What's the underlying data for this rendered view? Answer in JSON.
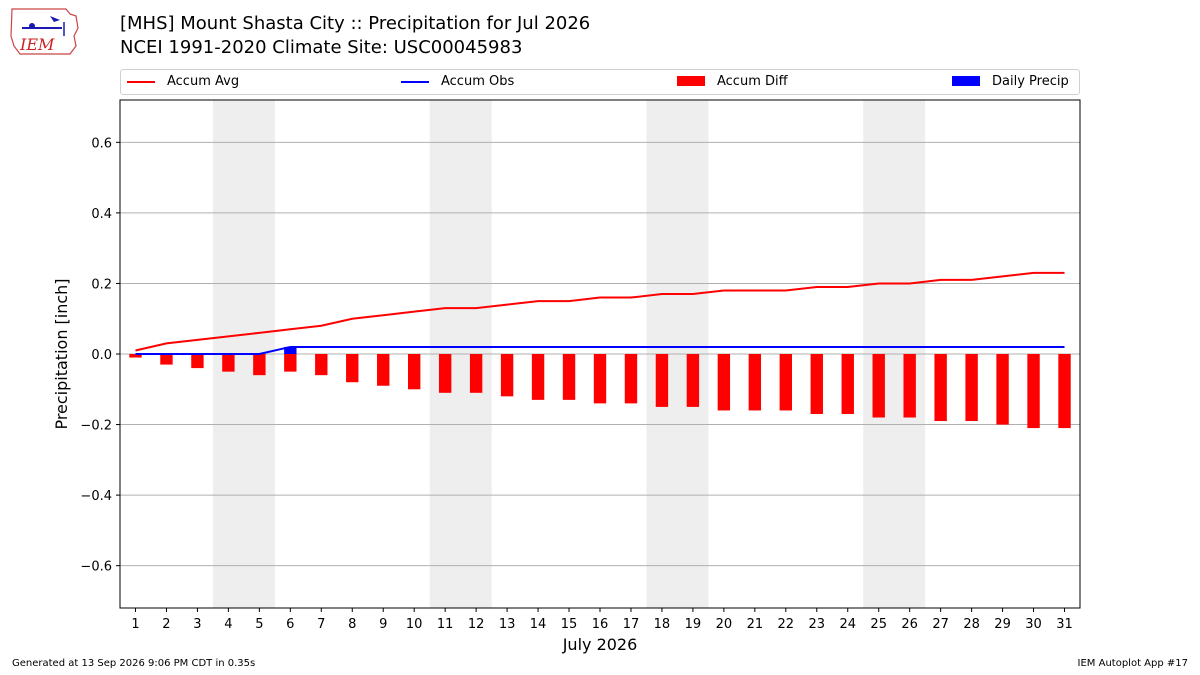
{
  "header": {
    "title_line1": "[MHS] Mount Shasta City :: Precipitation for Jul 2026",
    "title_line2": "NCEI 1991-2020 Climate Site: USC00045983"
  },
  "logo": {
    "text": "IEM"
  },
  "legend": {
    "items": [
      {
        "label": "Accum Avg",
        "kind": "line",
        "color": "#ff0000"
      },
      {
        "label": "Accum Obs",
        "kind": "line",
        "color": "#0000ff"
      },
      {
        "label": "Accum Diff",
        "kind": "box",
        "color": "#ff0000"
      },
      {
        "label": "Daily Precip",
        "kind": "box",
        "color": "#0000ff"
      }
    ]
  },
  "footer": {
    "left": "Generated at 13 Sep 2026 9:06 PM CDT in 0.35s",
    "right": "IEM Autoplot App #17"
  },
  "chart_data": {
    "type": "bar",
    "xlabel": "July 2026",
    "ylabel": "Precipitation [inch]",
    "ylim": [
      -0.72,
      0.72
    ],
    "xlim": [
      0.5,
      31.5
    ],
    "yticks": [
      -0.6,
      -0.4,
      -0.2,
      0.0,
      0.2,
      0.4,
      0.6
    ],
    "ytick_labels": [
      "−0.6",
      "−0.4",
      "−0.2",
      "0.0",
      "0.2",
      "0.4",
      "0.6"
    ],
    "grid": "horizontal",
    "x": [
      1,
      2,
      3,
      4,
      5,
      6,
      7,
      8,
      9,
      10,
      11,
      12,
      13,
      14,
      15,
      16,
      17,
      18,
      19,
      20,
      21,
      22,
      23,
      24,
      25,
      26,
      27,
      28,
      29,
      30,
      31
    ],
    "weekend_shading": [
      [
        4,
        5
      ],
      [
        11,
        12
      ],
      [
        18,
        19
      ],
      [
        25,
        26
      ]
    ],
    "series": [
      {
        "name": "Accum Avg",
        "kind": "line",
        "color": "#ff0000",
        "values": [
          0.01,
          0.03,
          0.04,
          0.05,
          0.06,
          0.07,
          0.08,
          0.1,
          0.11,
          0.12,
          0.13,
          0.13,
          0.14,
          0.15,
          0.15,
          0.16,
          0.16,
          0.17,
          0.17,
          0.18,
          0.18,
          0.18,
          0.19,
          0.19,
          0.2,
          0.2,
          0.21,
          0.21,
          0.22,
          0.23,
          0.23
        ]
      },
      {
        "name": "Accum Obs",
        "kind": "line",
        "color": "#0000ff",
        "values": [
          0.0,
          0.0,
          0.0,
          0.0,
          0.0,
          0.02,
          0.02,
          0.02,
          0.02,
          0.02,
          0.02,
          0.02,
          0.02,
          0.02,
          0.02,
          0.02,
          0.02,
          0.02,
          0.02,
          0.02,
          0.02,
          0.02,
          0.02,
          0.02,
          0.02,
          0.02,
          0.02,
          0.02,
          0.02,
          0.02,
          0.02
        ]
      },
      {
        "name": "Accum Diff",
        "kind": "bar",
        "color": "#ff0000",
        "values": [
          -0.01,
          -0.03,
          -0.04,
          -0.05,
          -0.06,
          -0.05,
          -0.06,
          -0.08,
          -0.09,
          -0.1,
          -0.11,
          -0.11,
          -0.12,
          -0.13,
          -0.13,
          -0.14,
          -0.14,
          -0.15,
          -0.15,
          -0.16,
          -0.16,
          -0.16,
          -0.17,
          -0.17,
          -0.18,
          -0.18,
          -0.19,
          -0.19,
          -0.2,
          -0.21,
          -0.21
        ]
      },
      {
        "name": "Daily Precip",
        "kind": "bar",
        "color": "#0000ff",
        "values": [
          0,
          0,
          0,
          0,
          0,
          0.02,
          0,
          0,
          0,
          0,
          0,
          0,
          0,
          0,
          0,
          0,
          0,
          0,
          0,
          0,
          0,
          0,
          0,
          0,
          0,
          0,
          0,
          0,
          0,
          0,
          0
        ]
      }
    ]
  }
}
